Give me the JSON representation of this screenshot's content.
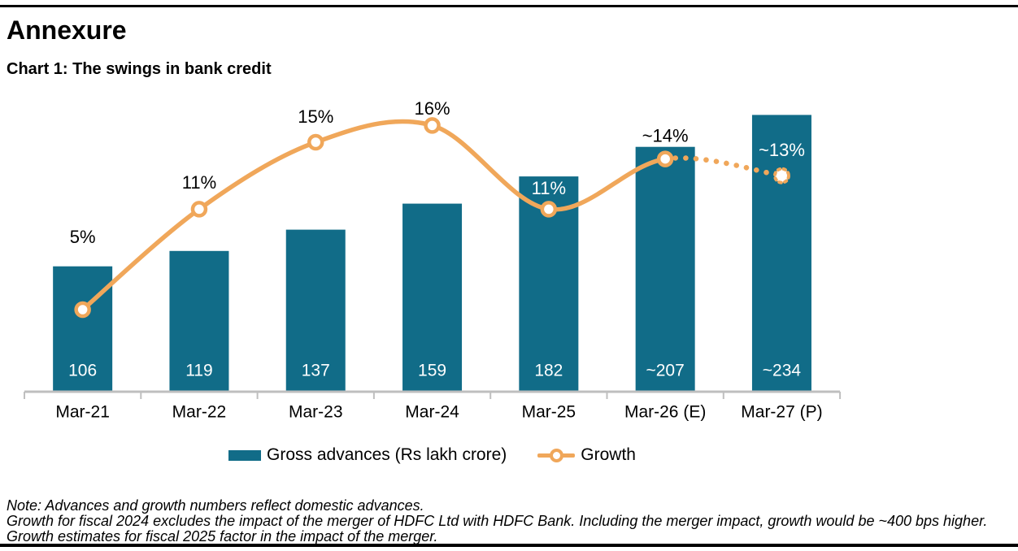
{
  "header": {
    "title": "Annexure",
    "chart_title": "Chart 1: The swings in bank credit"
  },
  "colors": {
    "bar": "#116C88",
    "line": "#F0A75A",
    "axis": "#BFBFBF",
    "label_on_bar": "#FFFFFF",
    "text": "#000000"
  },
  "chart_data": {
    "type": "bar",
    "subtype": "combo-bar-line",
    "title": "Chart 1: The swings in bank credit",
    "categories": [
      "Mar-21",
      "Mar-22",
      "Mar-23",
      "Mar-24",
      "Mar-25",
      "Mar-26 (E)",
      "Mar-27 (P)"
    ],
    "series": [
      {
        "name": "Gross advances (Rs lakh crore)",
        "type": "bar",
        "values": [
          106,
          119,
          137,
          159,
          182,
          207,
          234
        ],
        "value_labels": [
          "106",
          "119",
          "137",
          "159",
          "182",
          "~207",
          "~234"
        ]
      },
      {
        "name": "Growth",
        "type": "line",
        "unit": "%",
        "values": [
          5,
          11,
          15,
          16,
          11,
          14,
          13
        ],
        "value_labels": [
          "5%",
          "11%",
          "15%",
          "16%",
          "11%",
          "~14%",
          "~13%"
        ],
        "projected_segment_from": "Mar-26 (E)",
        "projected_point": "Mar-27 (P)"
      }
    ],
    "legend_position": "bottom",
    "grid": false,
    "y_axis_visible": false,
    "x_ticks_visible": true
  },
  "notes": {
    "line1": "Note: Advances and growth numbers reflect domestic advances.",
    "line2": "Growth for fiscal 2024 excludes the impact of the merger of HDFC Ltd with HDFC Bank. Including the merger impact, growth would be ~400 bps higher.",
    "line3": "Growth estimates for fiscal 2025 factor in the impact of the merger."
  }
}
